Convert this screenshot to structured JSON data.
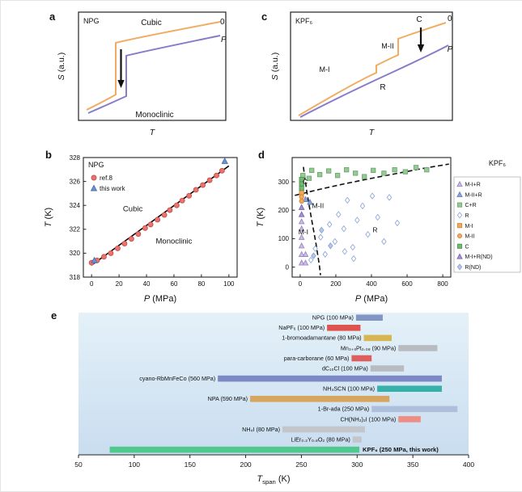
{
  "figure": {
    "panels": {
      "a": {
        "letter": "a",
        "title": "NPG",
        "region_top": "Cubic",
        "region_bottom": "Monoclinic",
        "curve_zero_label": "0",
        "curve_p_label": "P",
        "ylabel_var": "S",
        "ylabel_rest": " (a.u.)",
        "xlabel": "T"
      },
      "b": {
        "letter": "b"
      },
      "c": {
        "letter": "c",
        "title": "KPF₆",
        "label_c": "C",
        "label_m2": "M-II",
        "label_m1": "M-I",
        "label_r": "R",
        "curve_zero_label": "0",
        "curve_p_label": "P",
        "ylabel_var": "S",
        "ylabel_rest": " (a.u.)",
        "xlabel": "T"
      },
      "d": {
        "letter": "d"
      },
      "e": {
        "letter": "e"
      }
    }
  },
  "chart_data": [
    {
      "id": "b",
      "type": "scatter",
      "title": "NPG",
      "xlabel_var": "P",
      "xlabel_rest": " (MPa)",
      "ylabel_var": "T",
      "ylabel_rest": " (K)",
      "xlim": [
        -6,
        106
      ],
      "ylim": [
        318,
        328
      ],
      "xticks": [
        0,
        20,
        40,
        60,
        80,
        100
      ],
      "yticks": [
        318,
        320,
        322,
        324,
        326,
        328
      ],
      "legend": [
        {
          "label": "ref.8",
          "marker": "circle",
          "fill": "#e8736f",
          "stroke": "#c94f4b"
        },
        {
          "label": "this work",
          "marker": "triangle",
          "fill": "#6d93cc",
          "stroke": "#4a6fae"
        }
      ],
      "annotations": [
        {
          "text": "Cubic",
          "x": 30,
          "y": 323.5
        },
        {
          "text": "Monoclinic",
          "x": 60,
          "y": 320.8
        }
      ],
      "fit_line": {
        "x1": 0,
        "y1": 319.0,
        "x2": 100,
        "y2": 327.3,
        "color": "#000000"
      },
      "series": [
        {
          "name": "ref.8",
          "marker": "circle",
          "fill": "#e8736f",
          "stroke": "#c94f4b",
          "points": [
            [
              0,
              319.2
            ],
            [
              4,
              319.4
            ],
            [
              9,
              319.7
            ],
            [
              14,
              320.0
            ],
            [
              19,
              320.4
            ],
            [
              24,
              320.8
            ],
            [
              29,
              321.2
            ],
            [
              34,
              321.6
            ],
            [
              39,
              322.1
            ],
            [
              43,
              322.4
            ],
            [
              48,
              322.8
            ],
            [
              53,
              323.2
            ],
            [
              57,
              323.6
            ],
            [
              62,
              324.0
            ],
            [
              66,
              324.4
            ],
            [
              71,
              324.8
            ],
            [
              76,
              325.3
            ],
            [
              81,
              325.7
            ],
            [
              86,
              326.1
            ],
            [
              91,
              326.5
            ],
            [
              95,
              326.9
            ]
          ]
        },
        {
          "name": "this work",
          "marker": "triangle",
          "fill": "#6d93cc",
          "stroke": "#4a6fae",
          "points": [
            [
              2,
              319.4
            ],
            [
              97,
              327.7
            ]
          ]
        }
      ]
    },
    {
      "id": "d",
      "type": "scatter",
      "title": "KPF₆",
      "xlabel_var": "P",
      "xlabel_rest": " (MPa)",
      "ylabel_var": "T",
      "ylabel_rest": " (K)",
      "xlim": [
        -45,
        845
      ],
      "ylim": [
        -35,
        385
      ],
      "xticks": [
        0,
        200,
        400,
        600,
        800
      ],
      "yticks": [
        0,
        100,
        200,
        300
      ],
      "phase_labels": [
        {
          "text": "C",
          "x": 28,
          "y": 292
        },
        {
          "text": "M-II",
          "x": 100,
          "y": 207
        },
        {
          "text": "M-I",
          "x": 18,
          "y": 115
        },
        {
          "text": "R",
          "x": 420,
          "y": 122
        }
      ],
      "boundaries": [
        {
          "points": [
            [
              -30,
              252
            ],
            [
              100,
              272
            ],
            [
              250,
              293
            ],
            [
              400,
              312
            ],
            [
              550,
              330
            ],
            [
              700,
              348
            ],
            [
              835,
              362
            ]
          ]
        },
        {
          "points": [
            [
              18,
              352
            ],
            [
              38,
              262
            ],
            [
              62,
              175
            ],
            [
              88,
              85
            ],
            [
              108,
              5
            ],
            [
              114,
              -28
            ]
          ]
        }
      ],
      "series": [
        {
          "name": "M-I+R",
          "marker": "triangle",
          "fill": "#cdbfe3",
          "stroke": "#9a87c4",
          "points": [
            [
              8,
              15
            ],
            [
              8,
              45
            ],
            [
              8,
              75
            ],
            [
              8,
              105
            ],
            [
              8,
              135
            ],
            [
              8,
              160
            ],
            [
              30,
              15
            ],
            [
              30,
              45
            ]
          ]
        },
        {
          "name": "M-II+R",
          "marker": "triangle",
          "fill": "#8fa6d9",
          "stroke": "#5f7cbd",
          "points": [
            [
              30,
              238
            ],
            [
              55,
              228
            ]
          ]
        },
        {
          "name": "C+R",
          "marker": "square",
          "fill": "#97c897",
          "stroke": "#6fa86f",
          "points": [
            [
              15,
              322
            ],
            [
              50,
              312
            ],
            [
              65,
              340
            ],
            [
              110,
              325
            ],
            [
              160,
              338
            ],
            [
              210,
              322
            ],
            [
              260,
              342
            ],
            [
              310,
              330
            ],
            [
              360,
              318
            ],
            [
              410,
              340
            ],
            [
              470,
              330
            ],
            [
              530,
              342
            ],
            [
              590,
              335
            ],
            [
              650,
              350
            ],
            [
              710,
              342
            ]
          ]
        },
        {
          "name": "R",
          "marker": "diamond",
          "fill": "#ffffff",
          "stroke": "#93abd9",
          "points": [
            [
              60,
              25
            ],
            [
              85,
              65
            ],
            [
              115,
              105
            ],
            [
              140,
              45
            ],
            [
              165,
              150
            ],
            [
              195,
              90
            ],
            [
              215,
              185
            ],
            [
              245,
              135
            ],
            [
              265,
              235
            ],
            [
              295,
              70
            ],
            [
              320,
              165
            ],
            [
              350,
              215
            ],
            [
              380,
              115
            ],
            [
              405,
              250
            ],
            [
              435,
              175
            ],
            [
              470,
              90
            ],
            [
              500,
              245
            ],
            [
              545,
              155
            ],
            [
              300,
              30
            ],
            [
              250,
              55
            ]
          ]
        },
        {
          "name": "M-I",
          "marker": "square",
          "fill": "#f2a95c",
          "stroke": "#d18838",
          "points": [
            [
              8,
              262
            ]
          ]
        },
        {
          "name": "M-II",
          "marker": "circle",
          "fill": "#f2a95c",
          "stroke": "#d18838",
          "points": [
            [
              8,
              232
            ],
            [
              8,
              247
            ]
          ]
        },
        {
          "name": "C",
          "marker": "square",
          "fill": "#74b874",
          "stroke": "#4f9850",
          "points": [
            [
              8,
              277
            ],
            [
              8,
              293
            ],
            [
              8,
              308
            ]
          ]
        },
        {
          "name": "M-I+R(ND)",
          "marker": "triangle",
          "fill": "#a794cf",
          "stroke": "#7a64ad",
          "points": [
            [
              8,
              185
            ],
            [
              8,
              210
            ]
          ]
        },
        {
          "name": "R(ND)",
          "marker": "diamond",
          "fill": "#b9c9e6",
          "stroke": "#8aa3cf",
          "points": [
            [
              75,
              40
            ],
            [
              120,
              130
            ],
            [
              170,
              75
            ]
          ]
        }
      ]
    },
    {
      "id": "e",
      "type": "bar-h",
      "xlabel_var": "T",
      "xlabel_sub": "span",
      "xlabel_rest": " (K)",
      "xlim": [
        50,
        400
      ],
      "xticks": [
        50,
        100,
        150,
        200,
        250,
        300,
        350,
        400
      ],
      "bars": [
        {
          "label": "NPG (100 MPa)",
          "start": 299,
          "end": 323,
          "color": "#8296c6"
        },
        {
          "label": "NaPF₆ (100 MPa)",
          "start": 273,
          "end": 303,
          "color": "#df534e"
        },
        {
          "label": "1-bromoadamantane (80 MPa)",
          "start": 306,
          "end": 331,
          "color": "#d7b652"
        },
        {
          "label": "Mn₃₊ₓPt₀.₀₈ (90 MPa)",
          "start": 337,
          "end": 372,
          "color": "#b8bcc1"
        },
        {
          "label": "para-carborane (60 MPa)",
          "start": 295,
          "end": 313,
          "color": "#dd5e5a"
        },
        {
          "label": "dC₁₀Cl (100 MPa)",
          "start": 312,
          "end": 342,
          "color": "#b8bcc1"
        },
        {
          "label": "cyano-RbMnFeCo (560 MPa)",
          "start": 175,
          "end": 376,
          "color": "#7d89c6"
        },
        {
          "label": "NH₄SCN (100 MPa)",
          "start": 318,
          "end": 376,
          "color": "#35b1a9"
        },
        {
          "label": "NPA (590 MPa)",
          "start": 204,
          "end": 329,
          "color": "#d8a55e"
        },
        {
          "label": "1-Br-ada (250 MPa)",
          "start": 313,
          "end": 390,
          "color": "#aebfdb"
        },
        {
          "label": "CH(NH₂)₂I (100 MPa)",
          "start": 337,
          "end": 357,
          "color": "#ee8d84"
        },
        {
          "label": "NH₄I (80 MPa)",
          "start": 233,
          "end": 307,
          "color": "#c2c6ca"
        },
        {
          "label": "LiEr₀.₂Y₀.₈O₂ (80 MPa)",
          "start": 296,
          "end": 304,
          "color": "#c2c6ca"
        },
        {
          "label": "KPF₆ (250 MPa, this work)",
          "start": 78,
          "end": 302,
          "color": "#4fc98d",
          "label_side": "right",
          "bold": true
        }
      ]
    }
  ]
}
